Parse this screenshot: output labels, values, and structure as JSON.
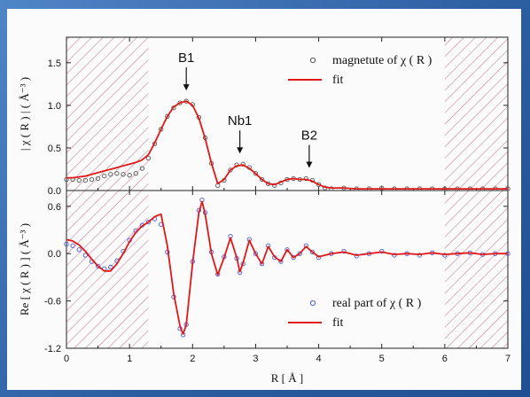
{
  "chart_data": [
    {
      "type": "scatter",
      "panel": "top",
      "ylabel": "| χ ( R ) | ( Å⁻³ )",
      "xlim": [
        0,
        7
      ],
      "ylim": [
        0,
        1.8
      ],
      "yticks": [
        "0.0",
        "0.5",
        "1.0",
        "1.5"
      ],
      "excluded_regions": [
        [
          0,
          1.3
        ],
        [
          6,
          7
        ]
      ],
      "annotations": [
        {
          "label": "B1",
          "x": 1.9,
          "y": 1.05
        },
        {
          "label": "Nb1",
          "x": 2.75,
          "y": 0.31
        },
        {
          "label": "B2",
          "x": 3.85,
          "y": 0.14
        }
      ],
      "legend_position": "top-right",
      "series": [
        {
          "name": "magnetute of χ ( R )",
          "style": "markers",
          "color": "#555555",
          "x": [
            0,
            0.1,
            0.2,
            0.3,
            0.4,
            0.5,
            0.6,
            0.7,
            0.8,
            0.9,
            1.0,
            1.1,
            1.2,
            1.3,
            1.4,
            1.5,
            1.6,
            1.7,
            1.8,
            1.9,
            2.0,
            2.1,
            2.2,
            2.3,
            2.4,
            2.5,
            2.6,
            2.7,
            2.8,
            2.9,
            3.0,
            3.1,
            3.2,
            3.3,
            3.4,
            3.5,
            3.6,
            3.7,
            3.8,
            3.9,
            4.0,
            4.1,
            4.2,
            4.4,
            4.6,
            4.8,
            5.0,
            5.2,
            5.4,
            5.6,
            5.8,
            6.0,
            6.2,
            6.4,
            6.6,
            6.8,
            7.0
          ],
          "values": [
            0.13,
            0.13,
            0.12,
            0.12,
            0.13,
            0.14,
            0.17,
            0.19,
            0.2,
            0.19,
            0.18,
            0.2,
            0.26,
            0.38,
            0.55,
            0.72,
            0.87,
            0.97,
            1.03,
            1.05,
            1.01,
            0.86,
            0.62,
            0.32,
            0.06,
            0.12,
            0.24,
            0.3,
            0.31,
            0.27,
            0.2,
            0.13,
            0.08,
            0.06,
            0.09,
            0.13,
            0.14,
            0.13,
            0.14,
            0.12,
            0.07,
            0.03,
            0.02,
            0.03,
            0.02,
            0.02,
            0.03,
            0.02,
            0.02,
            0.02,
            0.02,
            0.02,
            0.02,
            0.02,
            0.02,
            0.02,
            0.02
          ]
        },
        {
          "name": "fit",
          "style": "line",
          "color": "#e01818",
          "x": [
            0,
            0.1,
            0.2,
            0.3,
            0.4,
            0.5,
            0.6,
            0.7,
            0.8,
            0.9,
            1.0,
            1.1,
            1.2,
            1.3,
            1.4,
            1.5,
            1.6,
            1.7,
            1.8,
            1.9,
            2.0,
            2.1,
            2.2,
            2.3,
            2.4,
            2.5,
            2.6,
            2.7,
            2.8,
            2.9,
            3.0,
            3.1,
            3.2,
            3.3,
            3.4,
            3.5,
            3.6,
            3.7,
            3.8,
            3.9,
            4.0,
            4.1,
            4.2,
            4.4,
            4.6,
            4.8,
            5.0,
            5.2,
            5.4,
            5.6,
            5.8,
            6.0,
            6.2,
            6.4,
            6.6,
            6.8,
            7.0
          ],
          "values": [
            0.15,
            0.15,
            0.16,
            0.17,
            0.19,
            0.21,
            0.23,
            0.25,
            0.27,
            0.29,
            0.31,
            0.33,
            0.36,
            0.42,
            0.56,
            0.72,
            0.87,
            0.98,
            1.03,
            1.05,
            1.0,
            0.85,
            0.61,
            0.32,
            0.08,
            0.13,
            0.24,
            0.29,
            0.3,
            0.26,
            0.2,
            0.13,
            0.08,
            0.07,
            0.1,
            0.13,
            0.14,
            0.13,
            0.13,
            0.11,
            0.07,
            0.04,
            0.03,
            0.03,
            0.02,
            0.02,
            0.02,
            0.02,
            0.02,
            0.02,
            0.02,
            0.02,
            0.02,
            0.02,
            0.02,
            0.02,
            0.02
          ]
        }
      ]
    },
    {
      "type": "scatter",
      "panel": "bottom",
      "xlabel": "R [ Å ]",
      "ylabel": "Re [ χ ( R ) ] ( Å⁻³ )",
      "xlim": [
        0,
        7
      ],
      "ylim": [
        -1.2,
        0.8
      ],
      "xticks": [
        "0",
        "1",
        "2",
        "3",
        "4",
        "5",
        "6",
        "7"
      ],
      "yticks": [
        "-1.2",
        "-0.6",
        "0.0",
        "0.6"
      ],
      "excluded_regions": [
        [
          0,
          1.3
        ],
        [
          6,
          7
        ]
      ],
      "legend_position": "bottom-right",
      "series": [
        {
          "name": "real part of χ ( R )",
          "style": "markers",
          "color": "#4a58d8",
          "x": [
            0,
            0.1,
            0.2,
            0.3,
            0.4,
            0.5,
            0.6,
            0.7,
            0.8,
            0.9,
            1.0,
            1.1,
            1.2,
            1.3,
            1.4,
            1.5,
            1.6,
            1.7,
            1.8,
            1.85,
            1.9,
            2.0,
            2.1,
            2.15,
            2.2,
            2.3,
            2.4,
            2.5,
            2.6,
            2.7,
            2.75,
            2.8,
            2.9,
            3.0,
            3.1,
            3.2,
            3.3,
            3.4,
            3.5,
            3.6,
            3.7,
            3.8,
            3.9,
            4.0,
            4.2,
            4.4,
            4.6,
            4.8,
            5.0,
            5.2,
            5.4,
            5.6,
            5.8,
            6.0,
            6.2,
            6.4,
            6.6,
            6.8,
            7.0
          ],
          "values": [
            0.12,
            0.1,
            0.05,
            -0.02,
            -0.1,
            -0.16,
            -0.19,
            -0.17,
            -0.09,
            0.03,
            0.17,
            0.29,
            0.36,
            0.4,
            0.44,
            0.37,
            0.02,
            -0.55,
            -0.95,
            -1.03,
            -0.9,
            -0.1,
            0.55,
            0.68,
            0.52,
            0.02,
            -0.26,
            -0.04,
            0.22,
            -0.06,
            -0.24,
            -0.13,
            0.18,
            0.0,
            -0.13,
            0.1,
            -0.05,
            -0.1,
            0.05,
            -0.05,
            0.0,
            0.1,
            0.02,
            -0.05,
            0.0,
            0.03,
            -0.03,
            0.0,
            0.03,
            -0.02,
            0.0,
            -0.02,
            0.01,
            -0.02,
            0.0,
            0.01,
            -0.01,
            0.0,
            0.0
          ]
        },
        {
          "name": "fit",
          "style": "line",
          "color": "#e01818",
          "x": [
            0,
            0.1,
            0.2,
            0.3,
            0.4,
            0.5,
            0.6,
            0.7,
            0.8,
            0.9,
            1.0,
            1.1,
            1.2,
            1.3,
            1.4,
            1.5,
            1.6,
            1.7,
            1.8,
            1.85,
            1.9,
            2.0,
            2.1,
            2.15,
            2.2,
            2.3,
            2.4,
            2.5,
            2.6,
            2.7,
            2.75,
            2.8,
            2.9,
            3.0,
            3.1,
            3.2,
            3.3,
            3.4,
            3.5,
            3.6,
            3.7,
            3.8,
            3.9,
            4.0,
            4.2,
            4.4,
            4.6,
            4.8,
            5.0,
            5.2,
            5.4,
            5.6,
            5.8,
            6.0,
            6.2,
            6.4,
            6.6,
            6.8,
            7.0
          ],
          "values": [
            0.18,
            0.16,
            0.11,
            0.03,
            -0.07,
            -0.16,
            -0.22,
            -0.22,
            -0.13,
            0.0,
            0.15,
            0.27,
            0.35,
            0.4,
            0.47,
            0.5,
            0.1,
            -0.5,
            -0.92,
            -1.02,
            -0.9,
            -0.12,
            0.52,
            0.66,
            0.5,
            0.0,
            -0.27,
            -0.05,
            0.2,
            -0.05,
            -0.23,
            -0.12,
            0.17,
            0.0,
            -0.13,
            0.09,
            -0.04,
            -0.1,
            0.05,
            -0.05,
            0.0,
            0.09,
            0.02,
            -0.04,
            0.0,
            0.02,
            -0.02,
            0.0,
            0.02,
            -0.01,
            0.0,
            -0.01,
            0.01,
            -0.01,
            0.0,
            0.01,
            -0.01,
            0.0,
            0.0
          ]
        }
      ]
    }
  ]
}
